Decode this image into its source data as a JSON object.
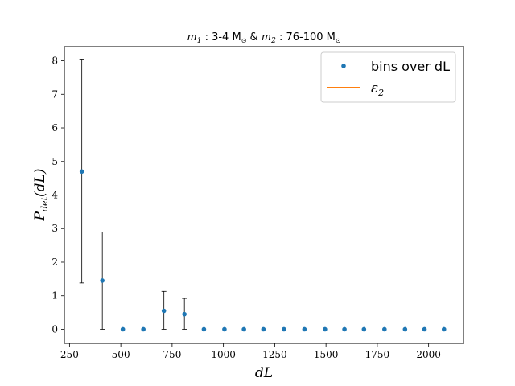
{
  "chart_data": {
    "type": "scatter",
    "title": {
      "m1_symbol": "m",
      "m1_sub": "1",
      "m1_range": " : 3-4 M",
      "sun": "⊙",
      "joiner": " & ",
      "m2_symbol": "m",
      "m2_sub": "2",
      "m2_range": " : 76-100 M"
    },
    "xlabel": "dL",
    "ylabel": {
      "base": "P",
      "sub": "det",
      "arg": "(dL)"
    },
    "xlim": [
      225,
      2170
    ],
    "ylim": [
      -0.42,
      8.42
    ],
    "xticks": [
      250,
      500,
      750,
      1000,
      1250,
      1500,
      1750,
      2000
    ],
    "yticks": [
      0,
      1,
      2,
      3,
      4,
      5,
      6,
      7,
      8
    ],
    "grid": false,
    "legend": {
      "placement": "top-right",
      "entries": [
        {
          "label": "bins over dL",
          "marker": "point"
        },
        {
          "label": "ε",
          "sub": "2",
          "marker": "line"
        }
      ]
    },
    "series": [
      {
        "name": "bins over dL",
        "color": "#1f77b4",
        "points": [
          {
            "x": 310,
            "y": 4.7,
            "err_low": 1.38,
            "err_high": 8.05
          },
          {
            "x": 410,
            "y": 1.45,
            "err_low": 0.0,
            "err_high": 2.9
          },
          {
            "x": 510,
            "y": 0
          },
          {
            "x": 610,
            "y": 0
          },
          {
            "x": 710,
            "y": 0.55,
            "err_low": 0.0,
            "err_high": 1.13
          },
          {
            "x": 810,
            "y": 0.45,
            "err_low": 0.0,
            "err_high": 0.92
          },
          {
            "x": 905,
            "y": 0
          },
          {
            "x": 1005,
            "y": 0
          },
          {
            "x": 1100,
            "y": 0
          },
          {
            "x": 1195,
            "y": 0
          },
          {
            "x": 1295,
            "y": 0
          },
          {
            "x": 1395,
            "y": 0
          },
          {
            "x": 1495,
            "y": 0
          },
          {
            "x": 1590,
            "y": 0
          },
          {
            "x": 1685,
            "y": 0
          },
          {
            "x": 1785,
            "y": 0
          },
          {
            "x": 1885,
            "y": 0
          },
          {
            "x": 1980,
            "y": 0
          },
          {
            "x": 2075,
            "y": 0
          }
        ]
      },
      {
        "name": "ε2",
        "color": "#ff7f0e",
        "points": []
      }
    ]
  }
}
